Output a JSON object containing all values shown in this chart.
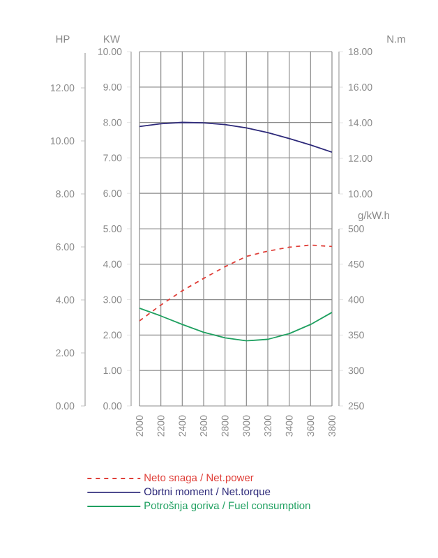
{
  "chart_data": {
    "type": "line",
    "x": [
      2000,
      2200,
      2400,
      2600,
      2800,
      3000,
      3200,
      3400,
      3600,
      3800
    ],
    "xlim": [
      2000,
      3800
    ],
    "xticks": [
      2000,
      2200,
      2400,
      2600,
      2800,
      3000,
      3200,
      3400,
      3600,
      3800
    ],
    "ylabel": "KW",
    "ylim": [
      0,
      10
    ],
    "yticks": [
      {
        "value": 0,
        "label": "0.00"
      },
      {
        "value": 1,
        "label": "1.00"
      },
      {
        "value": 2,
        "label": "2.00"
      },
      {
        "value": 3,
        "label": "3.00"
      },
      {
        "value": 4,
        "label": "4.00"
      },
      {
        "value": 5,
        "label": "5.00"
      },
      {
        "value": 6,
        "label": "6.00"
      },
      {
        "value": 7,
        "label": "7.00"
      },
      {
        "value": 8,
        "label": "8.00"
      },
      {
        "value": 9,
        "label": "9.00"
      },
      {
        "value": 10,
        "label": "10.00"
      }
    ],
    "y2label": "N.m",
    "y2lim": [
      10,
      18
    ],
    "y2ticks": [
      {
        "value": 10,
        "label": "10.00"
      },
      {
        "value": 12,
        "label": "12.00"
      },
      {
        "value": 14,
        "label": "14.00"
      },
      {
        "value": 16,
        "label": "16.00"
      },
      {
        "value": 18,
        "label": "18.00"
      }
    ],
    "y3label": "g/kW.h",
    "y3lim": [
      250,
      500
    ],
    "y3ticks": [
      250,
      300,
      350,
      400,
      450,
      500
    ],
    "annotations": [
      "HP",
      "0.00",
      "2.00",
      "4.00",
      "6.00",
      "8.00",
      "10.00",
      "12.00"
    ],
    "grid": true,
    "legend": "bottom",
    "series": [
      {
        "name": "Neto snaga / Net.power",
        "color": "#e0403a",
        "axis": "y",
        "line_style": "dashed",
        "values": [
          2.4,
          2.85,
          3.25,
          3.6,
          3.93,
          4.22,
          4.37,
          4.48,
          4.54,
          4.5
        ]
      },
      {
        "name": "Obrtni moment / Net.torque",
        "color": "#2e2a7a",
        "axis": "y2",
        "line_style": "solid",
        "values": [
          13.79,
          13.95,
          14.02,
          14.0,
          13.9,
          13.71,
          13.45,
          13.11,
          12.75,
          12.35
        ]
      },
      {
        "name": "Potrošnja goriva / Fuel consumption",
        "color": "#1fa060",
        "axis": "y3",
        "line_style": "solid",
        "values": [
          388,
          377,
          365,
          354,
          346,
          342,
          344,
          352,
          365,
          382
        ]
      }
    ]
  }
}
